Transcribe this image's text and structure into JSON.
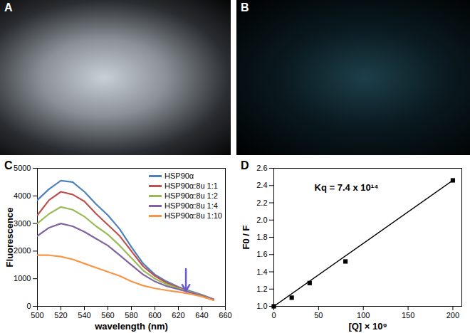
{
  "chart_data": [
    {
      "type": "image",
      "title": "A"
    },
    {
      "type": "image",
      "title": "B"
    },
    {
      "type": "line",
      "title": "C",
      "x_label": "wavelength (nm)",
      "y_label": "Fluorescence",
      "x": [
        500,
        510,
        520,
        530,
        540,
        550,
        560,
        570,
        580,
        590,
        600,
        610,
        620,
        630,
        640,
        650
      ],
      "series": [
        {
          "name": "HSP90α",
          "color": "#4f81bd",
          "values": [
            3850,
            4250,
            4550,
            4500,
            4150,
            3700,
            3300,
            2800,
            2150,
            1550,
            1150,
            900,
            700,
            550,
            420,
            260
          ]
        },
        {
          "name": "HSP90α:8u  1:1",
          "color": "#c0504d",
          "values": [
            3300,
            3850,
            4150,
            4050,
            3800,
            3350,
            2950,
            2550,
            2000,
            1450,
            1100,
            850,
            680,
            530,
            400,
            250
          ]
        },
        {
          "name": "HSP90α:8u  1:2",
          "color": "#9bbb59",
          "values": [
            3000,
            3350,
            3600,
            3500,
            3250,
            2900,
            2600,
            2200,
            1750,
            1300,
            1000,
            800,
            650,
            520,
            390,
            240
          ]
        },
        {
          "name": "HSP90α:8u  1:4",
          "color": "#8064a2",
          "values": [
            2550,
            2850,
            3000,
            2900,
            2700,
            2450,
            2200,
            1850,
            1500,
            1150,
            900,
            730,
            620,
            500,
            380,
            230
          ]
        },
        {
          "name": "HSP90α:8u  1:10",
          "color": "#f79646",
          "values": [
            1850,
            1850,
            1800,
            1700,
            1550,
            1400,
            1250,
            1100,
            900,
            750,
            650,
            580,
            520,
            450,
            350,
            220
          ]
        }
      ],
      "xlim": [
        500,
        660
      ],
      "xticks": [
        500,
        520,
        540,
        560,
        580,
        600,
        620,
        640,
        660
      ],
      "ylim": [
        0,
        5000
      ],
      "yticks": [
        0,
        1000,
        2000,
        3000,
        4000,
        5000
      ],
      "legend": "top-right",
      "grid": false
    },
    {
      "type": "scatter",
      "title": "D",
      "x_label": "[Q] × 10⁹",
      "y_label": "F0 / F",
      "annotation": "Kq = 7.4 x 10¹⁴",
      "series": [
        {
          "type": "scatter",
          "marker": "square",
          "color": "#000000",
          "x": [
            0,
            20,
            40,
            80,
            200
          ],
          "values": [
            1.0,
            1.1,
            1.27,
            1.52,
            2.46
          ]
        },
        {
          "type": "line",
          "color": "#000000",
          "x": [
            0,
            200
          ],
          "values": [
            1.0,
            2.46
          ]
        }
      ],
      "xlim": [
        0,
        210
      ],
      "xticks": [
        0,
        50,
        100,
        150,
        200
      ],
      "ylim": [
        1.0,
        2.6
      ],
      "yticks": [
        {
          "value": 1,
          "label": "1.0"
        },
        1.2,
        1.4,
        1.6,
        1.8,
        {
          "value": 2,
          "label": "2.0"
        },
        2.2,
        2.4,
        2.6
      ],
      "grid": false
    }
  ]
}
